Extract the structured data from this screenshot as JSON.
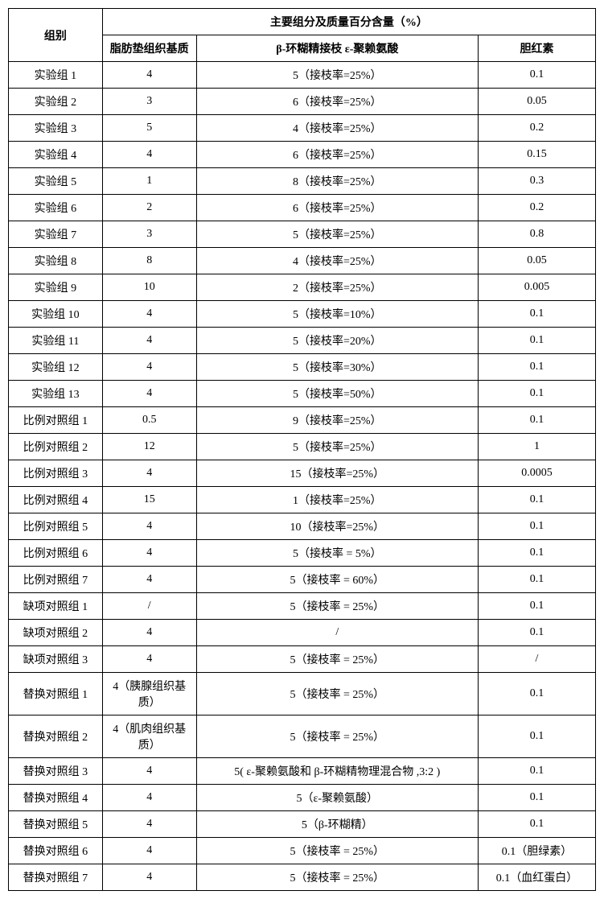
{
  "headers": {
    "group": "组别",
    "main": "主要组分及质量百分含量（%）",
    "fat": "脂肪垫组织基质",
    "beta": "β-环糊精接枝 ε-聚赖氨酸",
    "bili": "胆红素"
  },
  "rows": [
    {
      "group": "实验组 1",
      "fat": "4",
      "beta": "5（接枝率=25%）",
      "bili": "0.1"
    },
    {
      "group": "实验组 2",
      "fat": "3",
      "beta": "6（接枝率=25%）",
      "bili": "0.05"
    },
    {
      "group": "实验组 3",
      "fat": "5",
      "beta": "4（接枝率=25%）",
      "bili": "0.2"
    },
    {
      "group": "实验组 4",
      "fat": "4",
      "beta": "6（接枝率=25%）",
      "bili": "0.15"
    },
    {
      "group": "实验组 5",
      "fat": "1",
      "beta": "8（接枝率=25%）",
      "bili": "0.3"
    },
    {
      "group": "实验组 6",
      "fat": "2",
      "beta": "6（接枝率=25%）",
      "bili": "0.2"
    },
    {
      "group": "实验组 7",
      "fat": "3",
      "beta": "5（接枝率=25%）",
      "bili": "0.8"
    },
    {
      "group": "实验组 8",
      "fat": "8",
      "beta": "4（接枝率=25%）",
      "bili": "0.05"
    },
    {
      "group": "实验组 9",
      "fat": "10",
      "beta": "2（接枝率=25%）",
      "bili": "0.005"
    },
    {
      "group": "实验组 10",
      "fat": "4",
      "beta": "5（接枝率=10%）",
      "bili": "0.1"
    },
    {
      "group": "实验组 11",
      "fat": "4",
      "beta": "5（接枝率=20%）",
      "bili": "0.1"
    },
    {
      "group": "实验组 12",
      "fat": "4",
      "beta": "5（接枝率=30%）",
      "bili": "0.1"
    },
    {
      "group": "实验组 13",
      "fat": "4",
      "beta": "5（接枝率=50%）",
      "bili": "0.1"
    },
    {
      "group": "比例对照组 1",
      "fat": "0.5",
      "beta": "9（接枝率=25%）",
      "bili": "0.1"
    },
    {
      "group": "比例对照组 2",
      "fat": "12",
      "beta": "5（接枝率=25%）",
      "bili": "1"
    },
    {
      "group": "比例对照组 3",
      "fat": "4",
      "beta": "15（接枝率=25%）",
      "bili": "0.0005"
    },
    {
      "group": "比例对照组 4",
      "fat": "15",
      "beta": "1（接枝率=25%）",
      "bili": "0.1"
    },
    {
      "group": "比例对照组 5",
      "fat": "4",
      "beta": "10（接枝率=25%）",
      "bili": "0.1"
    },
    {
      "group": "比例对照组 6",
      "fat": "4",
      "beta": "5（接枝率 = 5%）",
      "bili": "0.1"
    },
    {
      "group": "比例对照组 7",
      "fat": "4",
      "beta": "5（接枝率 = 60%）",
      "bili": "0.1"
    },
    {
      "group": "缺项对照组 1",
      "fat": "/",
      "beta": "5（接枝率 = 25%）",
      "bili": "0.1"
    },
    {
      "group": "缺项对照组 2",
      "fat": "4",
      "beta": "/",
      "bili": "0.1"
    },
    {
      "group": "缺项对照组 3",
      "fat": "4",
      "beta": "5（接枝率 = 25%）",
      "bili": "/"
    },
    {
      "group": "替换对照组 1",
      "fat": "4（胰腺组织基质）",
      "beta": "5（接枝率 = 25%）",
      "bili": "0.1"
    },
    {
      "group": "替换对照组 2",
      "fat": "4（肌肉组织基质）",
      "beta": "5（接枝率 = 25%）",
      "bili": "0.1"
    },
    {
      "group": "替换对照组 3",
      "fat": "4",
      "beta": "5( ε-聚赖氨酸和 β-环糊精物理混合物 ,3:2 )",
      "bili": "0.1"
    },
    {
      "group": "替换对照组 4",
      "fat": "4",
      "beta": "5（ε-聚赖氨酸）",
      "bili": "0.1"
    },
    {
      "group": "替换对照组 5",
      "fat": "4",
      "beta": "5（β-环糊精）",
      "bili": "0.1"
    },
    {
      "group": "替换对照组 6",
      "fat": "4",
      "beta": "5（接枝率 = 25%）",
      "bili": "0.1（胆绿素）"
    },
    {
      "group": "替换对照组 7",
      "fat": "4",
      "beta": "5（接枝率 = 25%）",
      "bili": "0.1（血红蛋白）"
    }
  ]
}
